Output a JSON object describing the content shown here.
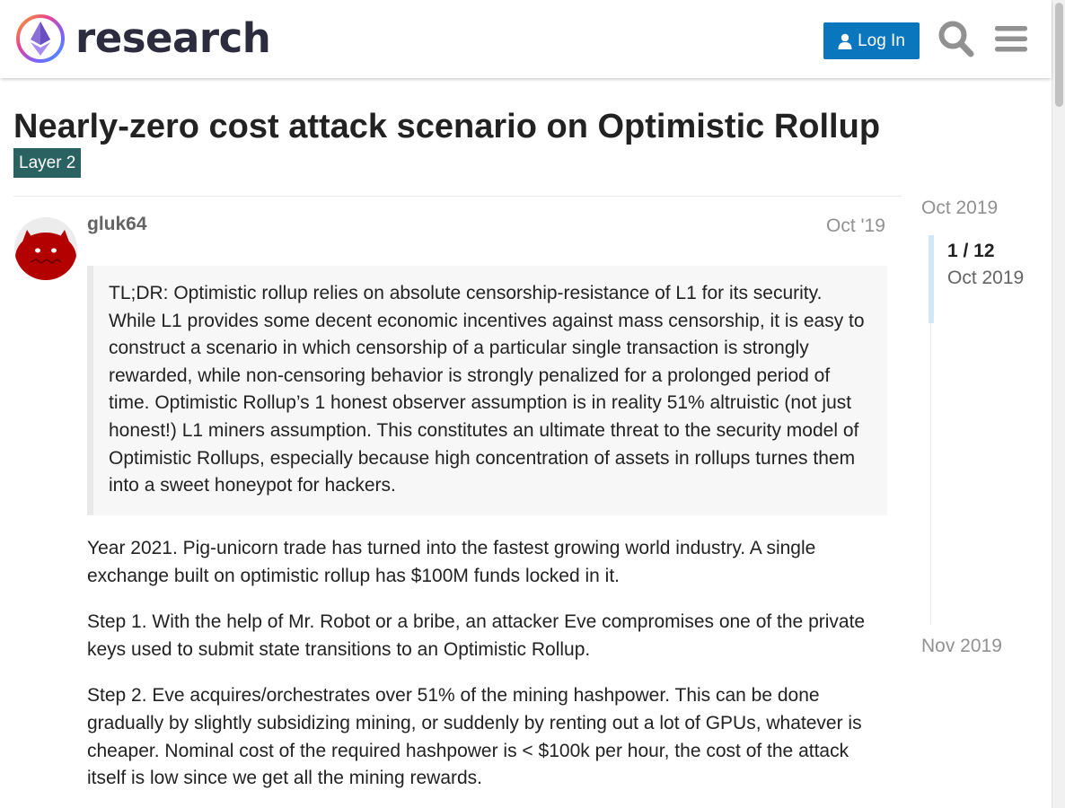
{
  "header": {
    "site_name": "research",
    "login_label": "Log In",
    "icons": [
      "ethereum-logo",
      "user-icon",
      "search-icon",
      "hamburger-menu-icon"
    ]
  },
  "topic": {
    "title": "Nearly-zero cost attack scenario on Optimistic Rollup",
    "category": "Layer 2",
    "category_color": "#2a6262"
  },
  "post": {
    "username": "gluk64",
    "date": "Oct '19",
    "quote": "TL;DR: Optimistic rollup relies on absolute censorship-resistance of L1 for its security. While L1 provides some decent economic incentives against mass censorship, it is easy to construct a scenario in which censorship of a particular single transaction is strongly rewarded, while non-censoring behavior is strongly penalized for a prolonged period of time. Optimistic Rollup’s 1 honest observer assumption is in reality 51% altruistic (not just honest!) L1 miners assumption. This constitutes an ultimate threat to the security model of Optimistic Rollups, especially because high concentration of assets in rollups turnes them into a sweet honeypot for hackers.",
    "paragraphs": [
      "Year 2021. Pig-unicorn trade has turned into the fastest growing world industry. A single exchange built on optimistic rollup has $100M funds locked in it.",
      "Step 1. With the help of Mr. Robot or a bribe, an attacker Eve compromises one of the private keys used to submit state transitions to an Optimistic Rollup.",
      "Step 2. Eve acquires/orchestrates over 51% of the mining hashpower. This can be done gradually by slightly subsidizing mining, or suddenly by renting out a lot of GPUs, whatever is cheaper. Nominal cost of the required hashpower is < $100k per hour, the cost of the attack itself is low since we get all the mining rewards."
    ]
  },
  "timeline": {
    "start_date": "Oct 2019",
    "position": "1 / 12",
    "position_date": "Oct 2019",
    "end_date": "Nov 2019"
  },
  "colors": {
    "accent": "#0a76bd",
    "avatar": "#b30000"
  }
}
